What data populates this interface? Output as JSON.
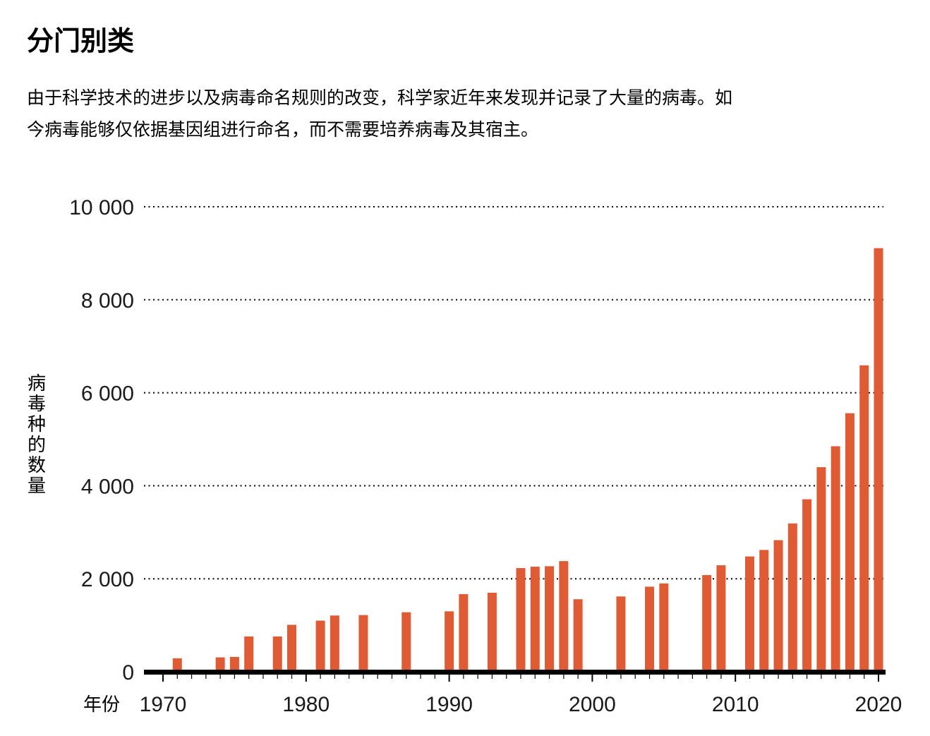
{
  "heading": {
    "title": "分门别类",
    "description_line1": "由于科学技术的进步以及病毒命名规则的改变，科学家近年来发现并记录了大量的病毒。如",
    "description_line2": "今病毒能够仅依据基因组进行命名，而不需要培养病毒及其宿主。"
  },
  "colors": {
    "bar": "#e05a33",
    "axis": "#000000",
    "grid": "#000000"
  },
  "chart_data": {
    "type": "bar",
    "xlabel": "年份",
    "ylabel": "病毒种的数量",
    "ylim": [
      0,
      10000
    ],
    "xlim": [
      1970,
      2020
    ],
    "grid": "horizontal dotted",
    "y_ticks": [
      0,
      2000,
      4000,
      6000,
      8000,
      10000
    ],
    "y_tick_labels": [
      "0",
      "2 000",
      "4 000",
      "6 000",
      "8 000",
      "10 000"
    ],
    "x_ticks": [
      1970,
      1980,
      1990,
      2000,
      2010,
      2020
    ],
    "x_tick_labels": [
      "1970",
      "1980",
      "1990",
      "2000",
      "2010",
      "2020"
    ],
    "bars": [
      {
        "year": 1971,
        "value": 290
      },
      {
        "year": 1974,
        "value": 310
      },
      {
        "year": 1975,
        "value": 320
      },
      {
        "year": 1976,
        "value": 760
      },
      {
        "year": 1978,
        "value": 760
      },
      {
        "year": 1979,
        "value": 1010
      },
      {
        "year": 1981,
        "value": 1100
      },
      {
        "year": 1982,
        "value": 1210
      },
      {
        "year": 1984,
        "value": 1220
      },
      {
        "year": 1987,
        "value": 1280
      },
      {
        "year": 1990,
        "value": 1300
      },
      {
        "year": 1991,
        "value": 1670
      },
      {
        "year": 1993,
        "value": 1700
      },
      {
        "year": 1995,
        "value": 2230
      },
      {
        "year": 1996,
        "value": 2260
      },
      {
        "year": 1997,
        "value": 2270
      },
      {
        "year": 1998,
        "value": 2380
      },
      {
        "year": 1999,
        "value": 1560
      },
      {
        "year": 2002,
        "value": 1620
      },
      {
        "year": 2004,
        "value": 1830
      },
      {
        "year": 2005,
        "value": 1900
      },
      {
        "year": 2008,
        "value": 2080
      },
      {
        "year": 2009,
        "value": 2290
      },
      {
        "year": 2011,
        "value": 2480
      },
      {
        "year": 2012,
        "value": 2620
      },
      {
        "year": 2013,
        "value": 2830
      },
      {
        "year": 2014,
        "value": 3190
      },
      {
        "year": 2015,
        "value": 3710
      },
      {
        "year": 2016,
        "value": 4400
      },
      {
        "year": 2017,
        "value": 4850
      },
      {
        "year": 2018,
        "value": 5560
      },
      {
        "year": 2019,
        "value": 6590
      },
      {
        "year": 2020,
        "value": 9110
      }
    ]
  }
}
